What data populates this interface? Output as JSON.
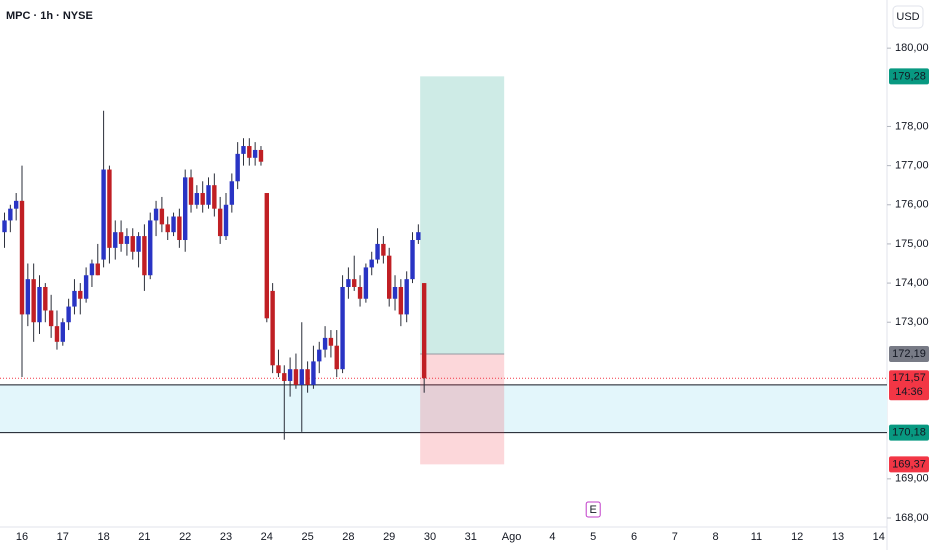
{
  "header": {
    "symbol": "MPC · 1h · NYSE",
    "currency": "USD"
  },
  "chart_data": {
    "type": "candlestick",
    "categories": [
      "16",
      "17",
      "18",
      "21",
      "22",
      "23",
      "24",
      "25",
      "28",
      "29",
      "30",
      "31",
      "Ago",
      "4",
      "5",
      "6",
      "7",
      "8",
      "11",
      "12",
      "13",
      "14"
    ],
    "open": [
      175.3,
      175.6,
      175.9,
      176.1,
      173.2,
      174.1,
      173.0,
      173.9,
      173.3,
      172.9,
      172.5,
      173.0,
      173.4,
      173.8,
      173.6,
      174.2,
      174.5,
      174.6,
      176.9,
      174.9,
      175.3,
      175.0,
      175.2,
      174.8,
      175.2,
      174.2,
      175.6,
      175.9,
      175.5,
      175.3,
      175.7,
      175.1,
      176.7,
      176.0,
      176.3,
      176.0,
      176.5,
      175.9,
      175.2,
      176.0,
      176.6,
      177.3,
      177.5,
      177.2,
      177.4,
      176.3,
      173.8,
      171.9,
      171.7,
      171.5,
      171.8,
      171.4,
      171.8,
      171.4,
      172.0,
      172.3,
      172.6,
      172.4,
      171.8,
      173.9,
      174.1,
      173.9,
      173.6,
      174.4,
      174.6,
      175.0,
      174.7,
      173.6,
      173.9,
      173.2,
      174.1,
      175.1,
      174.0
    ],
    "high": [
      175.8,
      176.0,
      176.3,
      177.0,
      174.5,
      174.5,
      174.2,
      174.0,
      173.7,
      173.3,
      173.1,
      173.6,
      174.1,
      174.0,
      174.4,
      174.6,
      175.0,
      178.4,
      177.0,
      175.6,
      175.6,
      175.4,
      175.4,
      175.3,
      175.5,
      175.8,
      176.1,
      176.2,
      175.7,
      175.8,
      175.9,
      176.9,
      176.9,
      176.5,
      176.6,
      176.7,
      176.8,
      176.2,
      176.3,
      176.8,
      177.6,
      177.7,
      177.7,
      177.6,
      177.5,
      176.3,
      174.0,
      172.3,
      171.9,
      172.1,
      172.2,
      173.0,
      172.0,
      172.4,
      172.5,
      172.9,
      172.8,
      172.8,
      174.2,
      174.4,
      174.7,
      174.2,
      174.5,
      174.8,
      175.4,
      175.2,
      174.9,
      174.2,
      174.1,
      174.3,
      175.3,
      175.5,
      174.0
    ],
    "low": [
      174.9,
      175.3,
      175.6,
      171.6,
      172.9,
      172.5,
      172.7,
      173.0,
      172.6,
      172.3,
      172.4,
      172.8,
      173.2,
      173.2,
      173.5,
      173.9,
      174.2,
      174.4,
      174.5,
      174.6,
      174.8,
      174.7,
      174.6,
      174.4,
      173.8,
      174.1,
      175.2,
      175.3,
      175.1,
      175.2,
      174.9,
      174.8,
      175.8,
      175.9,
      175.8,
      175.9,
      175.7,
      175.0,
      175.1,
      175.8,
      176.4,
      177.0,
      177.0,
      177.0,
      177.0,
      173.0,
      171.7,
      171.6,
      170.0,
      171.1,
      171.3,
      170.2,
      171.2,
      171.3,
      171.7,
      172.1,
      172.1,
      171.6,
      171.7,
      173.6,
      173.8,
      173.4,
      173.5,
      174.2,
      174.5,
      174.5,
      173.4,
      173.3,
      172.9,
      173.0,
      174.0,
      175.0,
      171.2
    ],
    "close": [
      175.6,
      175.9,
      176.1,
      173.2,
      174.1,
      173.0,
      173.9,
      173.3,
      172.9,
      172.5,
      173.0,
      173.4,
      173.8,
      173.6,
      174.2,
      174.5,
      174.2,
      176.9,
      174.9,
      175.3,
      175.0,
      175.2,
      174.8,
      175.2,
      174.2,
      175.6,
      175.9,
      175.5,
      175.3,
      175.7,
      175.1,
      176.7,
      176.0,
      176.3,
      176.0,
      176.5,
      175.9,
      175.2,
      176.0,
      176.6,
      177.3,
      177.5,
      177.2,
      177.4,
      177.1,
      173.1,
      171.9,
      171.7,
      171.5,
      171.8,
      171.4,
      171.8,
      171.4,
      172.0,
      172.3,
      172.6,
      172.4,
      171.8,
      173.9,
      174.1,
      173.9,
      173.6,
      174.4,
      174.6,
      175.0,
      174.7,
      173.6,
      173.9,
      173.2,
      174.1,
      175.1,
      175.3,
      171.57
    ],
    "up_color": "#2934c4",
    "down_color": "#c01f24",
    "wick_color": "#2a2e39",
    "ylim": [
      167.77,
      181.23
    ],
    "yticks": [
      {
        "value": 168,
        "label": "168,00"
      },
      {
        "value": 169,
        "label": "169,00"
      },
      {
        "value": 173,
        "label": "173,00"
      },
      {
        "value": 174,
        "label": "174,00"
      },
      {
        "value": 175,
        "label": "175,00"
      },
      {
        "value": 176,
        "label": "176,00"
      },
      {
        "value": 177,
        "label": "177,00"
      },
      {
        "value": 178,
        "label": "178,00"
      },
      {
        "value": 180,
        "label": "180,00"
      }
    ],
    "position": {
      "target": {
        "value": 179.28,
        "label": "179,28",
        "color": "#089981"
      },
      "entry": {
        "value": 172.19,
        "label": "172,19",
        "color": "#787b86"
      },
      "stop": {
        "value": 169.37,
        "label": "169,37",
        "color": "#f23645"
      }
    },
    "last_price": {
      "value": 171.57,
      "label": "171,57",
      "countdown": "14:36",
      "color": "#f23645"
    },
    "zone": {
      "top": 171.4,
      "bottom": {
        "value": 170.18,
        "label": "170,18",
        "color": "#089981"
      }
    },
    "event": "E"
  }
}
